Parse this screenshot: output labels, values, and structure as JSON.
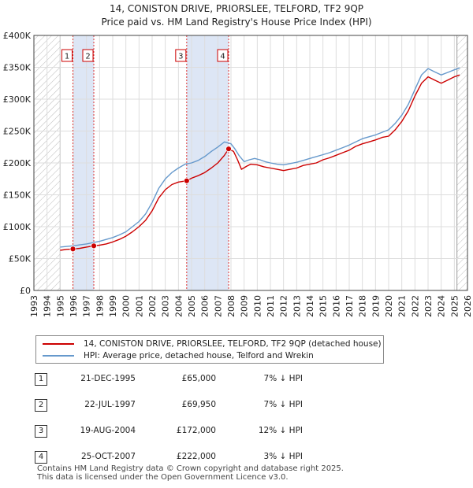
{
  "chart_data": {
    "type": "line",
    "title": "14, CONISTON DRIVE, PRIORSLEE, TELFORD, TF2 9QP",
    "subtitle": "Price paid vs. HM Land Registry's House Price Index (HPI)",
    "xlim": [
      1993,
      2026
    ],
    "ylim": [
      0,
      400000
    ],
    "yticks": [
      {
        "value": 0,
        "label": "£0"
      },
      {
        "value": 50000,
        "label": "£50K"
      },
      {
        "value": 100000,
        "label": "£100K"
      },
      {
        "value": 150000,
        "label": "£150K"
      },
      {
        "value": 200000,
        "label": "£200K"
      },
      {
        "value": 250000,
        "label": "£250K"
      },
      {
        "value": 300000,
        "label": "£300K"
      },
      {
        "value": 350000,
        "label": "£350K"
      },
      {
        "value": 400000,
        "label": "£400K"
      }
    ],
    "xticks": [
      "1993",
      "1994",
      "1995",
      "1996",
      "1997",
      "1998",
      "1999",
      "2000",
      "2001",
      "2002",
      "2003",
      "2004",
      "2005",
      "2006",
      "2007",
      "2008",
      "2009",
      "2010",
      "2011",
      "2012",
      "2013",
      "2014",
      "2015",
      "2016",
      "2017",
      "2018",
      "2019",
      "2020",
      "2021",
      "2022",
      "2023",
      "2024",
      "2025",
      "2026"
    ],
    "hatch_ranges": [
      [
        1993,
        1995.0
      ],
      [
        2025.2,
        2026
      ]
    ],
    "shaded_ranges": [
      [
        1995.97,
        1997.56
      ],
      [
        2004.63,
        2007.82
      ]
    ],
    "series": [
      {
        "name": "14, CONISTON DRIVE, PRIORSLEE, TELFORD, TF2 9QP (detached house)",
        "color": "#cc0000",
        "x": [
          1995.0,
          1995.5,
          1995.97,
          1996.5,
          1997.0,
          1997.56,
          1998.0,
          1998.5,
          1999.0,
          1999.5,
          2000.0,
          2000.5,
          2001.0,
          2001.5,
          2002.0,
          2002.5,
          2003.0,
          2003.5,
          2004.0,
          2004.63,
          2005.0,
          2005.5,
          2006.0,
          2006.5,
          2007.0,
          2007.5,
          2007.82,
          2008.2,
          2008.5,
          2008.8,
          2009.2,
          2009.5,
          2010.0,
          2010.5,
          2011.0,
          2011.5,
          2012.0,
          2012.5,
          2013.0,
          2013.5,
          2014.0,
          2014.5,
          2015.0,
          2015.5,
          2016.0,
          2016.5,
          2017.0,
          2017.5,
          2018.0,
          2018.5,
          2019.0,
          2019.5,
          2020.0,
          2020.5,
          2021.0,
          2021.5,
          2022.0,
          2022.5,
          2023.0,
          2023.5,
          2024.0,
          2024.5,
          2025.0,
          2025.4
        ],
        "values": [
          63000,
          64500,
          65000,
          66000,
          68000,
          69950,
          71000,
          73000,
          76000,
          80000,
          85000,
          92000,
          100000,
          110000,
          125000,
          145000,
          158000,
          166000,
          170000,
          172000,
          176000,
          180000,
          185000,
          192000,
          200000,
          212000,
          222000,
          218000,
          205000,
          190000,
          195000,
          198000,
          197000,
          194000,
          192000,
          190000,
          188000,
          190000,
          192000,
          196000,
          198000,
          200000,
          205000,
          208000,
          212000,
          216000,
          220000,
          226000,
          230000,
          233000,
          236000,
          240000,
          242000,
          252000,
          265000,
          282000,
          305000,
          325000,
          335000,
          330000,
          325000,
          330000,
          335000,
          338000
        ]
      },
      {
        "name": "HPI: Average price, detached house, Telford and Wrekin",
        "color": "#6699cc",
        "x": [
          1995.0,
          1995.5,
          1996.0,
          1996.5,
          1997.0,
          1997.5,
          1998.0,
          1998.5,
          1999.0,
          1999.5,
          2000.0,
          2000.5,
          2001.0,
          2001.5,
          2002.0,
          2002.5,
          2003.0,
          2003.5,
          2004.0,
          2004.5,
          2005.0,
          2005.5,
          2006.0,
          2006.5,
          2007.0,
          2007.5,
          2008.0,
          2008.3,
          2008.6,
          2009.0,
          2009.4,
          2009.8,
          2010.2,
          2010.6,
          2011.0,
          2011.5,
          2012.0,
          2012.5,
          2013.0,
          2013.5,
          2014.0,
          2014.5,
          2015.0,
          2015.5,
          2016.0,
          2016.5,
          2017.0,
          2017.5,
          2018.0,
          2018.5,
          2019.0,
          2019.5,
          2020.0,
          2020.5,
          2021.0,
          2021.5,
          2022.0,
          2022.5,
          2023.0,
          2023.5,
          2024.0,
          2024.5,
          2025.0,
          2025.4
        ],
        "values": [
          68000,
          69000,
          70000,
          71500,
          73000,
          75000,
          77000,
          80000,
          83000,
          87000,
          92000,
          100000,
          108000,
          120000,
          138000,
          160000,
          175000,
          185000,
          192000,
          198000,
          200000,
          204000,
          210000,
          218000,
          225000,
          233000,
          230000,
          222000,
          212000,
          202000,
          205000,
          207000,
          205000,
          202000,
          200000,
          198000,
          197000,
          199000,
          201000,
          204000,
          207000,
          210000,
          213000,
          216000,
          220000,
          224000,
          228000,
          233000,
          238000,
          241000,
          244000,
          248000,
          252000,
          262000,
          275000,
          292000,
          315000,
          338000,
          348000,
          343000,
          338000,
          342000,
          346000,
          349000
        ]
      }
    ],
    "sales": [
      {
        "num": "1",
        "x": 1995.97,
        "value": 65000
      },
      {
        "num": "2",
        "x": 1997.56,
        "value": 69950
      },
      {
        "num": "3",
        "x": 2004.63,
        "value": 172000
      },
      {
        "num": "4",
        "x": 2007.82,
        "value": 222000
      }
    ]
  },
  "legend": {
    "property_label": "14, CONISTON DRIVE, PRIORSLEE, TELFORD, TF2 9QP (detached house)",
    "hpi_label": "HPI: Average price, detached house, Telford and Wrekin",
    "property_color": "#cc0000",
    "hpi_color": "#6699cc"
  },
  "sales_table": [
    {
      "num": "1",
      "date": "21-DEC-1995",
      "price": "£65,000",
      "hpi": "7% ↓ HPI"
    },
    {
      "num": "2",
      "date": "22-JUL-1997",
      "price": "£69,950",
      "hpi": "7% ↓ HPI"
    },
    {
      "num": "3",
      "date": "19-AUG-2004",
      "price": "£172,000",
      "hpi": "12% ↓ HPI"
    },
    {
      "num": "4",
      "date": "25-OCT-2007",
      "price": "£222,000",
      "hpi": "3% ↓ HPI"
    }
  ],
  "footer": {
    "line1": "Contains HM Land Registry data © Crown copyright and database right 2025.",
    "line2": "This data is licensed under the Open Government Licence v3.0."
  }
}
